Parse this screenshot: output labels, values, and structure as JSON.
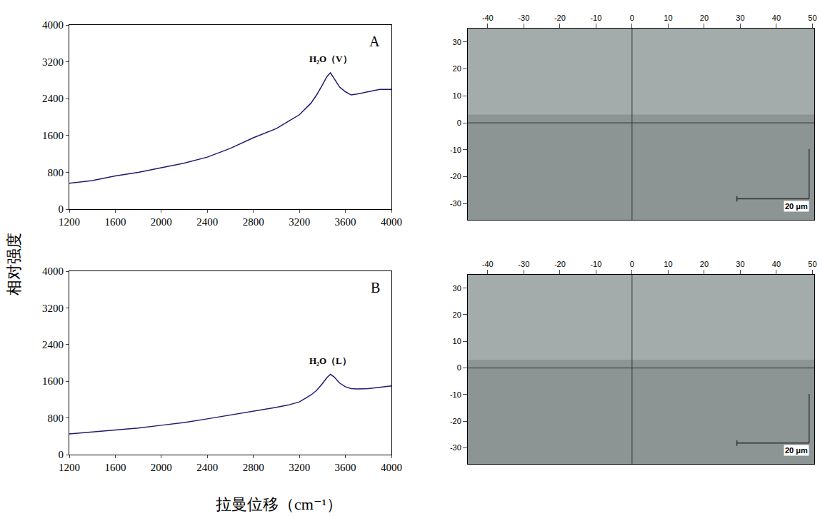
{
  "figure": {
    "xlabel": "拉曼位移（cm⁻¹）",
    "ylabel": "相对强度"
  },
  "chart_data": [
    {
      "type": "line",
      "panel": "A",
      "annotation": "H₂O（V）",
      "color": "#1f1a6e",
      "x": [
        1200,
        1300,
        1400,
        1600,
        1800,
        2000,
        2200,
        2400,
        2600,
        2800,
        3000,
        3100,
        3200,
        3300,
        3350,
        3400,
        3440,
        3470,
        3500,
        3550,
        3600,
        3650,
        3700,
        3800,
        3900,
        4000
      ],
      "values": [
        560,
        590,
        620,
        720,
        800,
        900,
        1000,
        1130,
        1320,
        1550,
        1750,
        1900,
        2050,
        2300,
        2480,
        2700,
        2880,
        2960,
        2850,
        2650,
        2550,
        2480,
        2500,
        2550,
        2600,
        2600
      ],
      "xlim": [
        1200,
        4000
      ],
      "ylim": [
        0,
        4000
      ],
      "xticks": [
        1200,
        1600,
        2000,
        2400,
        2800,
        3200,
        3600,
        4000
      ],
      "yticks": [
        0,
        800,
        1600,
        2400,
        3200,
        4000
      ]
    },
    {
      "type": "micrograph",
      "panel": "A",
      "xlim": [
        -45.5,
        50.5
      ],
      "ylim": [
        -36,
        35
      ],
      "xticks": [
        -40,
        -30,
        -20,
        -10,
        0,
        10,
        20,
        30,
        40,
        50
      ],
      "yticks": [
        -30,
        -20,
        -10,
        0,
        10,
        20,
        30
      ],
      "scale_bar": {
        "length": 20,
        "label": "20 μm"
      }
    },
    {
      "type": "line",
      "panel": "B",
      "annotation": "H₂O（L）",
      "color": "#1f1a6e",
      "x": [
        1200,
        1300,
        1400,
        1600,
        1800,
        2000,
        2200,
        2400,
        2600,
        2800,
        3000,
        3100,
        3200,
        3300,
        3350,
        3400,
        3440,
        3470,
        3500,
        3550,
        3600,
        3650,
        3700,
        3800,
        3900,
        4000
      ],
      "values": [
        450,
        470,
        490,
        530,
        580,
        640,
        700,
        780,
        860,
        950,
        1030,
        1080,
        1150,
        1300,
        1400,
        1550,
        1680,
        1750,
        1700,
        1560,
        1480,
        1440,
        1430,
        1440,
        1470,
        1500
      ],
      "xlim": [
        1200,
        4000
      ],
      "ylim": [
        0,
        4000
      ],
      "xticks": [
        1200,
        1600,
        2000,
        2400,
        2800,
        3200,
        3600,
        4000
      ],
      "yticks": [
        0,
        800,
        1600,
        2400,
        3200,
        4000
      ]
    },
    {
      "type": "micrograph",
      "panel": "B",
      "xlim": [
        -45.5,
        50.5
      ],
      "ylim": [
        -36,
        35
      ],
      "xticks": [
        -40,
        -30,
        -20,
        -10,
        0,
        10,
        20,
        30,
        40,
        50
      ],
      "yticks": [
        -30,
        -20,
        -10,
        0,
        10,
        20,
        30
      ],
      "scale_bar": {
        "length": 20,
        "label": "20 μm"
      }
    }
  ]
}
